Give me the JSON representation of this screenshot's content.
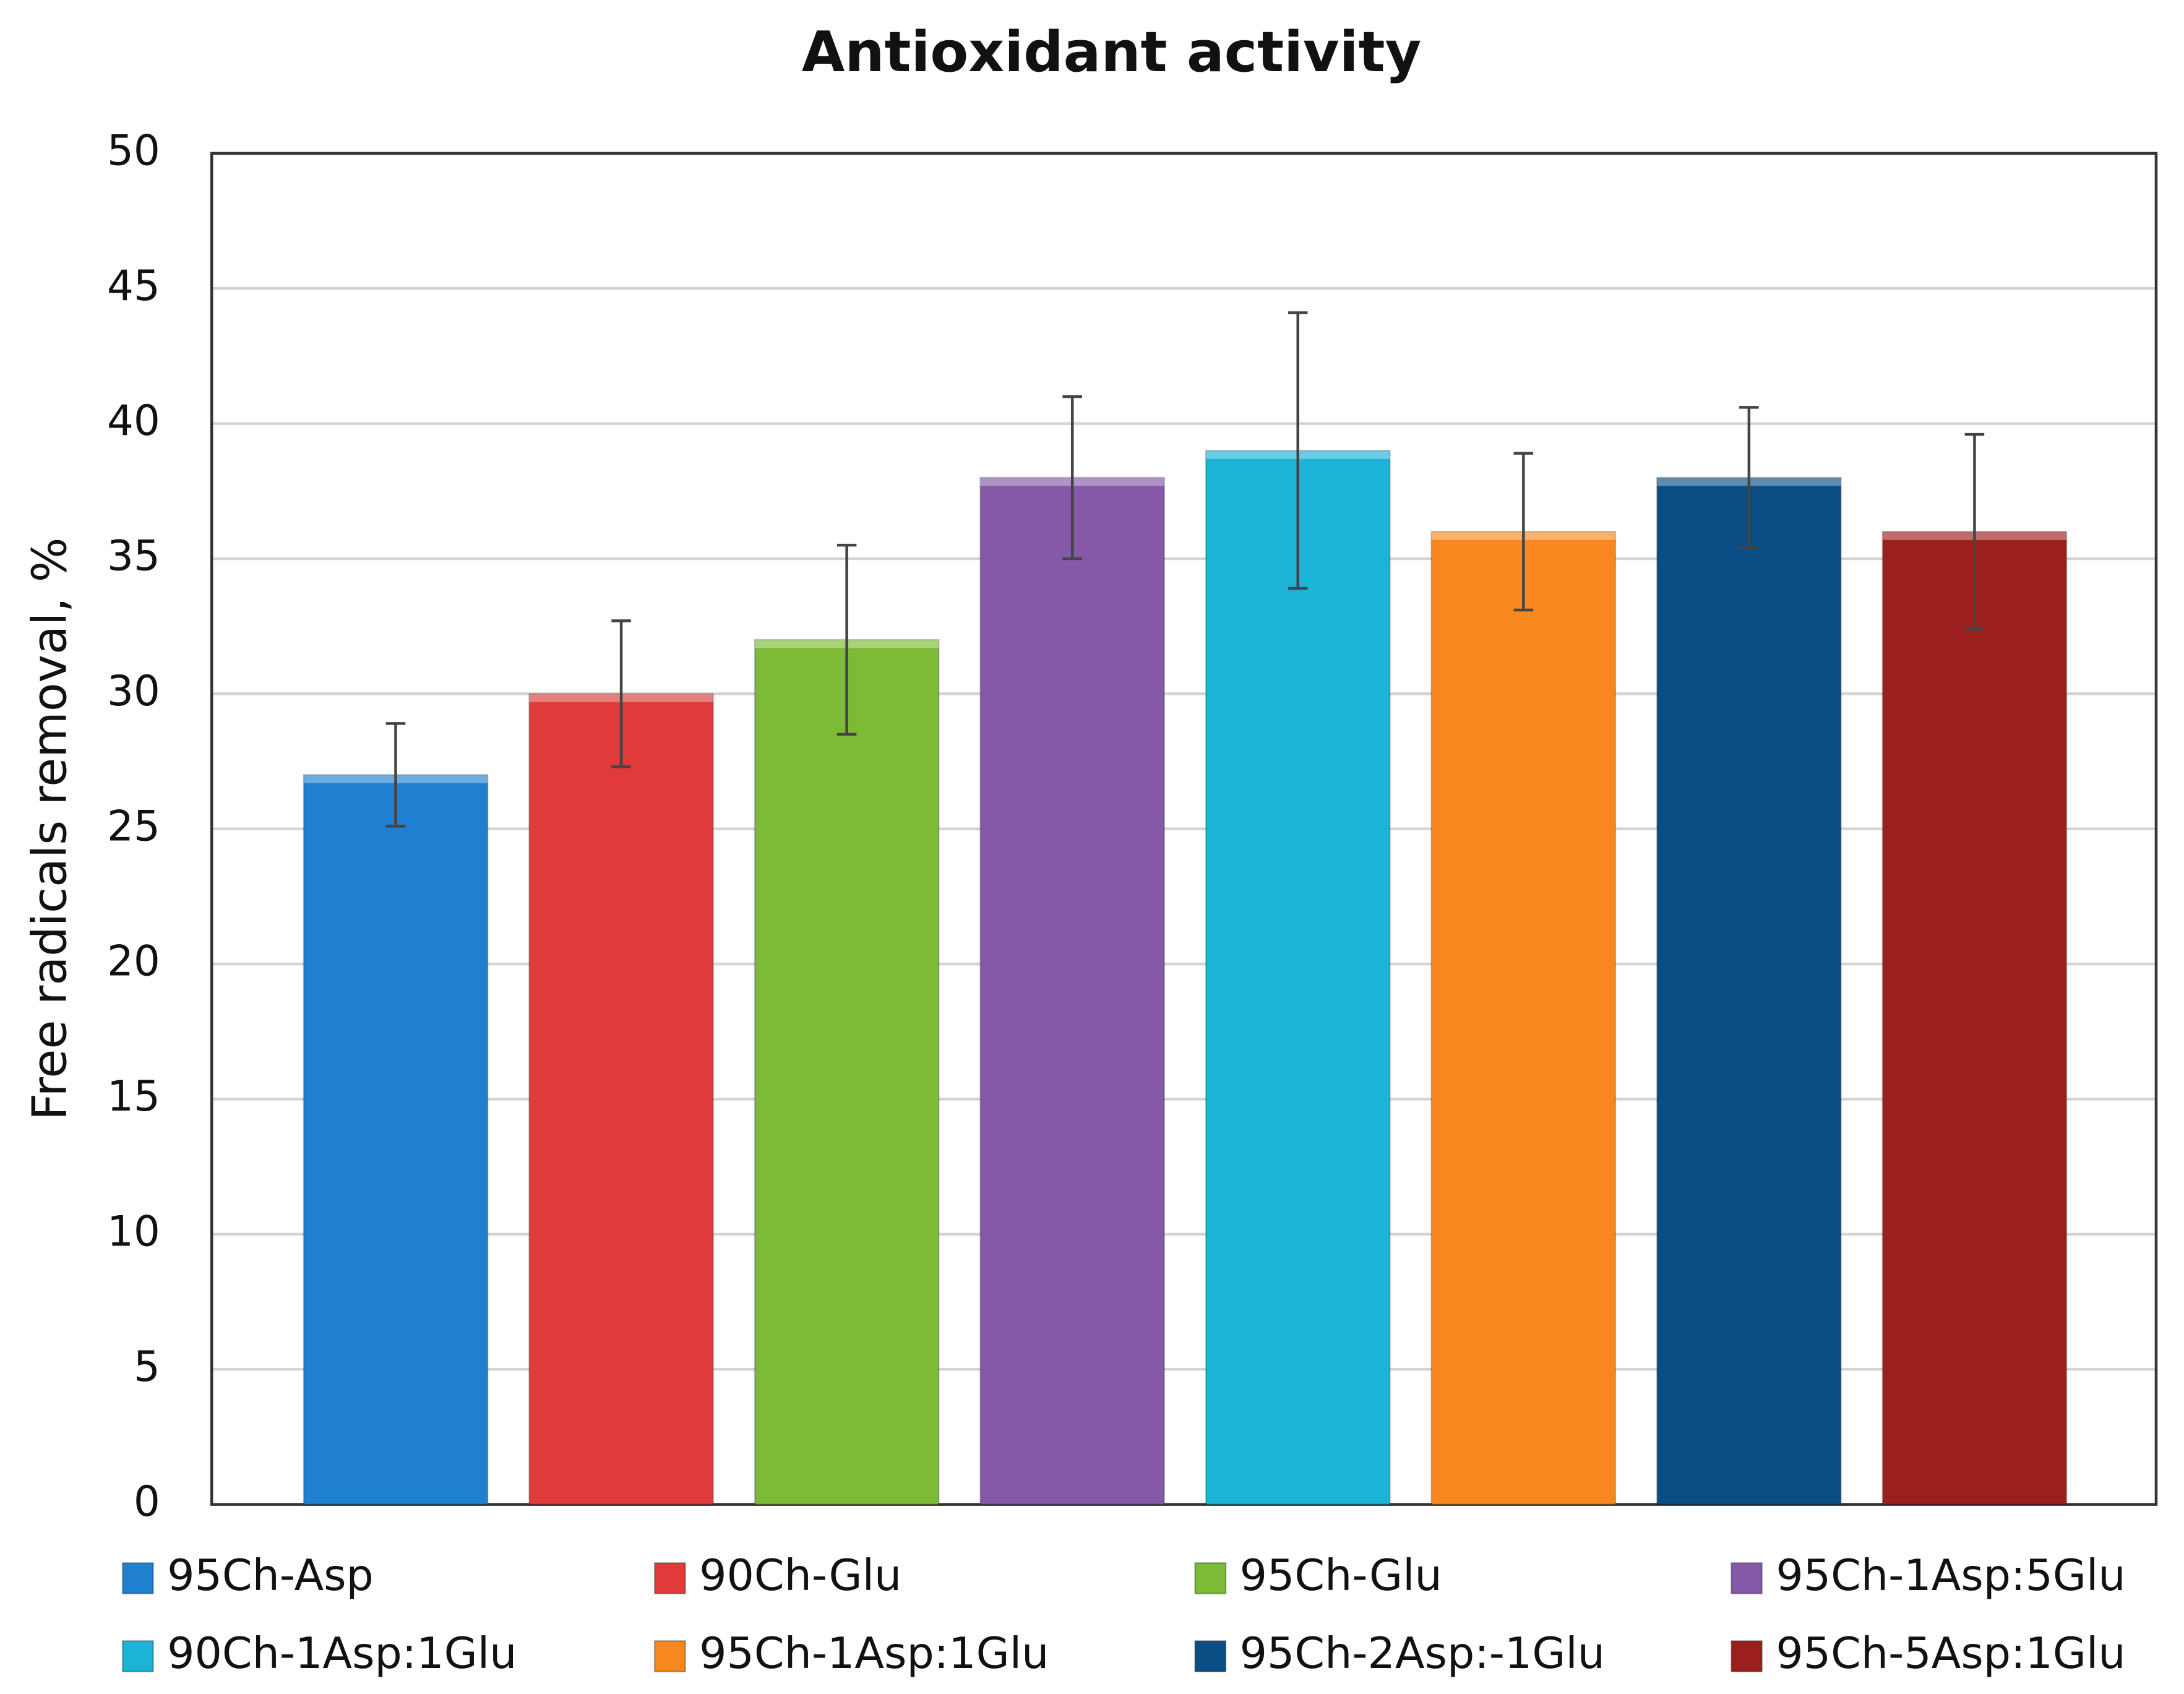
{
  "chart_data": {
    "type": "bar",
    "title": "Antioxidant activity",
    "y_label": "Free radicals removal, %",
    "ylim": [
      0,
      50
    ],
    "yticks": [
      0,
      5,
      10,
      15,
      20,
      25,
      30,
      35,
      40,
      45,
      50
    ],
    "grid": true,
    "legend": "bottom",
    "series": [
      {
        "name": "95Ch-Asp",
        "color": "#1f7fd0",
        "values": [
          27
        ],
        "errors": [
          1.9
        ]
      },
      {
        "name": "90Ch-Glu",
        "color": "#e03a3a",
        "values": [
          30
        ],
        "errors": [
          2.7
        ]
      },
      {
        "name": "95Ch-Glu",
        "color": "#7dba35",
        "values": [
          32
        ],
        "errors": [
          3.5
        ]
      },
      {
        "name": "95Ch-1Asp:5Glu",
        "color": "#8658a8",
        "values": [
          38
        ],
        "errors": [
          3
        ]
      },
      {
        "name": "90Ch-1Asp:1Glu",
        "color": "#1bb3d6",
        "values": [
          39
        ],
        "errors": [
          5.1
        ]
      },
      {
        "name": "95Ch-1Asp:1Glu",
        "color": "#f7871e",
        "values": [
          36
        ],
        "errors": [
          2.9
        ]
      },
      {
        "name": "95Ch-2Asp:-1Glu",
        "color": "#0b4d85",
        "values": [
          38
        ],
        "errors": [
          2.6
        ]
      },
      {
        "name": "95Ch-5Asp:1Glu",
        "color": "#9b1f1c",
        "values": [
          36
        ],
        "errors": [
          3.6
        ]
      }
    ]
  }
}
